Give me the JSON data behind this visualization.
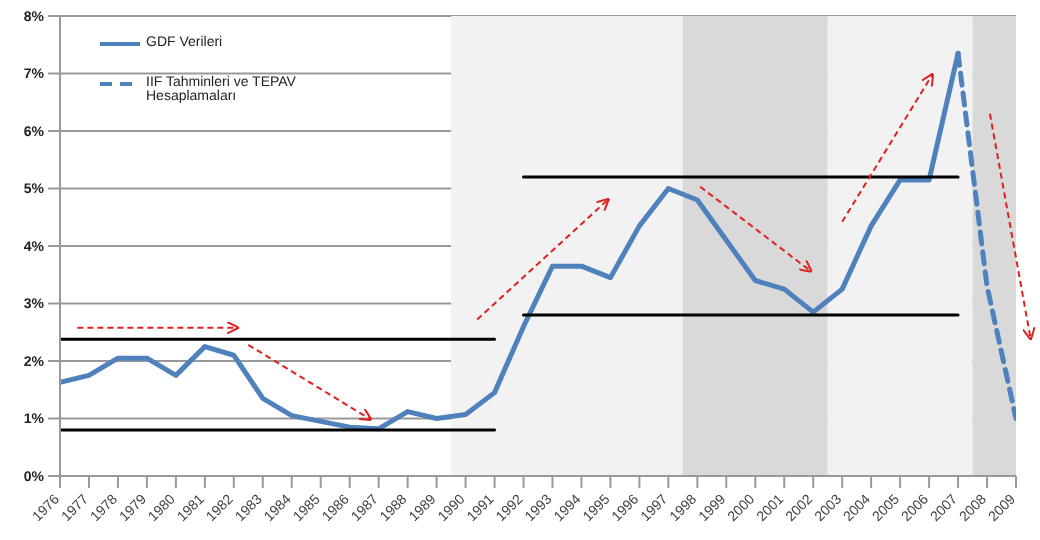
{
  "chart_data": {
    "type": "line",
    "categories": [
      "1976",
      "1977",
      "1978",
      "1979",
      "1980",
      "1981",
      "1982",
      "1983",
      "1984",
      "1985",
      "1986",
      "1987",
      "1988",
      "1989",
      "1990",
      "1991",
      "1992",
      "1993",
      "1994",
      "1995",
      "1996",
      "1997",
      "1998",
      "1999",
      "2000",
      "2001",
      "2002",
      "2003",
      "2004",
      "2005",
      "2006",
      "2007",
      "2008",
      "2009"
    ],
    "series": [
      {
        "name": "GDF Verileri",
        "color": "#4f81bd",
        "line_style": "solid",
        "values": [
          1.63,
          1.75,
          2.05,
          2.05,
          1.75,
          2.25,
          2.1,
          1.35,
          1.05,
          0.95,
          0.85,
          0.82,
          1.12,
          1.0,
          1.07,
          1.45,
          2.6,
          3.65,
          3.65,
          3.45,
          4.35,
          5.0,
          4.8,
          4.1,
          3.4,
          3.25,
          2.85,
          3.25,
          4.35,
          5.15,
          5.15,
          7.35,
          null,
          null
        ]
      },
      {
        "name": "IIF Tahminleri ve TEPAV Hesaplamaları",
        "color": "#4f81bd",
        "line_style": "dashed",
        "values": [
          null,
          null,
          null,
          null,
          null,
          null,
          null,
          null,
          null,
          null,
          null,
          null,
          null,
          null,
          null,
          null,
          null,
          null,
          null,
          null,
          null,
          null,
          null,
          null,
          null,
          null,
          null,
          null,
          null,
          null,
          null,
          7.35,
          3.3,
          1.0
        ]
      },
      {
        "color": "#000000",
        "line_style": "solid",
        "values": [
          2.38,
          2.38,
          2.38,
          2.38,
          2.38,
          2.38,
          2.38,
          2.38,
          2.38,
          2.38,
          2.38,
          2.38,
          2.38,
          2.38,
          2.38,
          2.38,
          null,
          null,
          null,
          null,
          null,
          null,
          null,
          null,
          null,
          null,
          null,
          null,
          null,
          null,
          null,
          null,
          null,
          null
        ]
      },
      {
        "color": "#000000",
        "line_style": "solid",
        "values": [
          0.8,
          0.8,
          0.8,
          0.8,
          0.8,
          0.8,
          0.8,
          0.8,
          0.8,
          0.8,
          0.8,
          0.8,
          0.8,
          0.8,
          0.8,
          0.8,
          null,
          null,
          null,
          null,
          null,
          null,
          null,
          null,
          null,
          null,
          null,
          null,
          null,
          null,
          null,
          null,
          null,
          null
        ]
      },
      {
        "color": "#000000",
        "line_style": "solid",
        "values": [
          null,
          null,
          null,
          null,
          null,
          null,
          null,
          null,
          null,
          null,
          null,
          null,
          null,
          null,
          null,
          null,
          5.2,
          5.2,
          5.2,
          5.2,
          5.2,
          5.2,
          5.2,
          5.2,
          5.2,
          5.2,
          5.2,
          5.2,
          5.2,
          5.2,
          5.2,
          5.2,
          null,
          null
        ]
      },
      {
        "color": "#000000",
        "line_style": "solid",
        "values": [
          null,
          null,
          null,
          null,
          null,
          null,
          null,
          null,
          null,
          null,
          null,
          null,
          null,
          null,
          null,
          null,
          2.8,
          2.8,
          2.8,
          2.8,
          2.8,
          2.8,
          2.8,
          2.8,
          2.8,
          2.8,
          2.8,
          2.8,
          2.8,
          2.8,
          2.8,
          2.8,
          null,
          null
        ]
      }
    ],
    "bands": [
      {
        "axis": "x",
        "from": "1990",
        "to": "1997",
        "color": "#f2f2f2"
      },
      {
        "axis": "x",
        "from": "1998",
        "to": "2002",
        "color": "#d9d9d9"
      },
      {
        "axis": "x",
        "from": "2003",
        "to": "2007",
        "color": "#f2f2f2"
      },
      {
        "axis": "x",
        "from": "2008",
        "to": "2009",
        "color": "#d9d9d9"
      }
    ],
    "ylim": [
      0,
      8
    ],
    "yticks": [
      {
        "value": 0,
        "label": "0%"
      },
      {
        "value": 1,
        "label": "1%"
      },
      {
        "value": 2,
        "label": "2%"
      },
      {
        "value": 3,
        "label": "3%"
      },
      {
        "value": 4,
        "label": "4%"
      },
      {
        "value": 5,
        "label": "5%"
      },
      {
        "value": 6,
        "label": "6%"
      },
      {
        "value": 7,
        "label": "7%"
      },
      {
        "value": 8,
        "label": "8%"
      }
    ],
    "grid": "y",
    "legend": "top left",
    "marker": "none"
  }
}
